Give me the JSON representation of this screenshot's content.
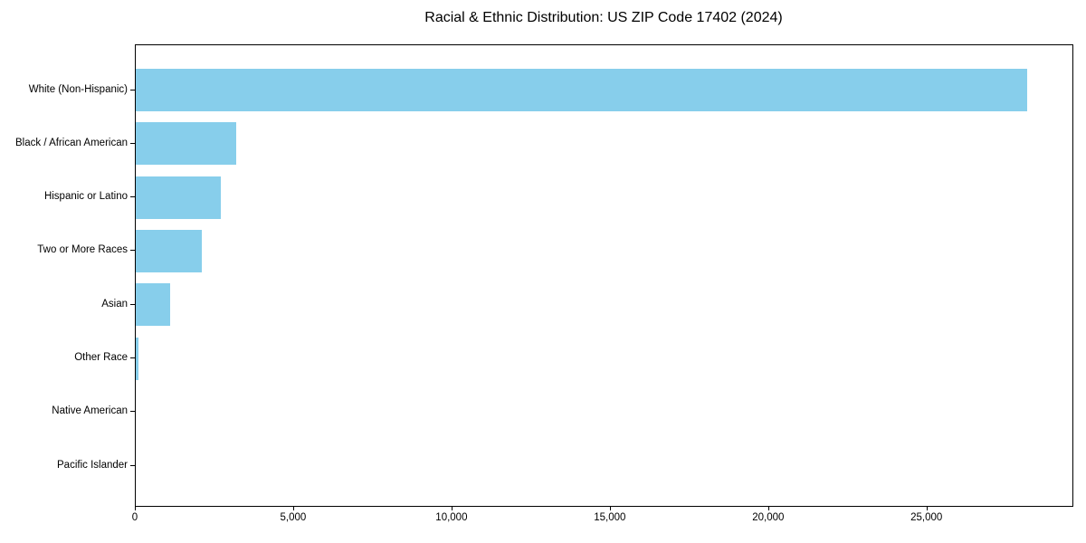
{
  "chart_data": {
    "type": "bar",
    "orientation": "horizontal",
    "title": "Racial & Ethnic Distribution: US ZIP Code 17402 (2024)",
    "categories": [
      "White (Non-Hispanic)",
      "Black / African American",
      "Hispanic or Latino",
      "Two or More Races",
      "Asian",
      "Other Race",
      "Native American",
      "Pacific Islander"
    ],
    "values": [
      28200,
      3200,
      2700,
      2100,
      1100,
      110,
      0,
      0
    ],
    "xlabel": "",
    "ylabel": "",
    "xlim": [
      0,
      29610
    ],
    "x_ticks": [
      0,
      5000,
      10000,
      15000,
      20000,
      25000
    ],
    "x_tick_labels": [
      "0",
      "5,000",
      "10,000",
      "15,000",
      "20,000",
      "25,000"
    ],
    "grid": false,
    "legend": "none",
    "bar_color": "#87CEEB",
    "background_color": "#FFFFFF",
    "spine_color": "#000000",
    "text_color": "#000000"
  }
}
